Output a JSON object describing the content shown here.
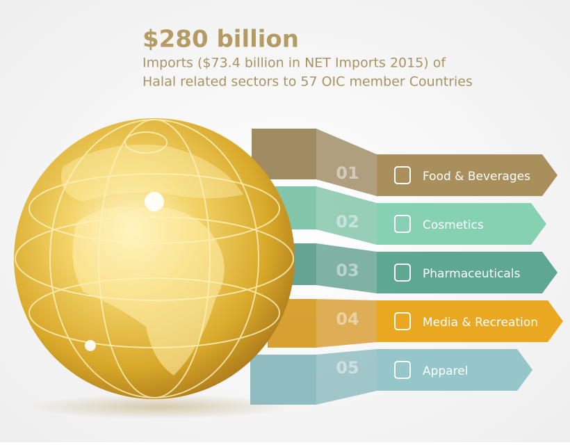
{
  "header": {
    "title": "$280 billion",
    "subtitle": [
      "Imports ($73.4 billion in NET Imports 2015) of",
      "Halal related sectors to 57 OIC member Countries"
    ]
  },
  "items": [
    {
      "number": "01",
      "label": "Food & Beverages"
    },
    {
      "number": "02",
      "label": "Cosmetics"
    },
    {
      "number": "03",
      "label": "Pharmaceuticals"
    },
    {
      "number": "04",
      "label": "Media & Recreation"
    },
    {
      "number": "05",
      "label": "Apparel"
    }
  ]
}
